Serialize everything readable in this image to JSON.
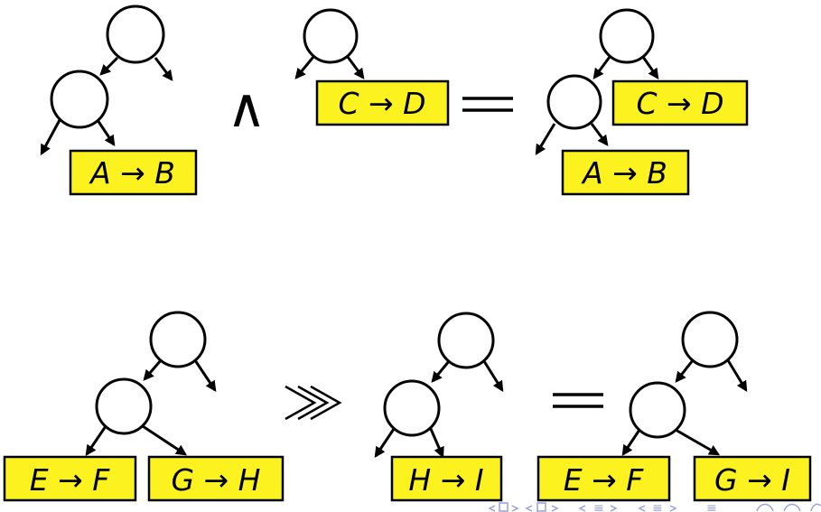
{
  "diagrams": [
    {
      "id": "conjunction",
      "left": {
        "leaf": "A → B"
      },
      "operator": {
        "symbol": "∧",
        "name": "and-operator"
      },
      "right": {
        "leaf": "C → D"
      },
      "equals": "=",
      "result": {
        "leaves": [
          "C → D",
          "A → B"
        ]
      }
    },
    {
      "id": "composition",
      "left": {
        "leaves": [
          "E → F",
          "G → H"
        ]
      },
      "operator": {
        "symbol": "⋙",
        "name": "compose-operator"
      },
      "right": {
        "leaf": "H → I"
      },
      "equals": "=",
      "result": {
        "leaves": [
          "E → F",
          "G → I"
        ]
      }
    }
  ],
  "nav_bar": {
    "color": "#9aa0d8"
  },
  "colors": {
    "box_fill": "#fbf21f",
    "stroke": "#000000"
  }
}
